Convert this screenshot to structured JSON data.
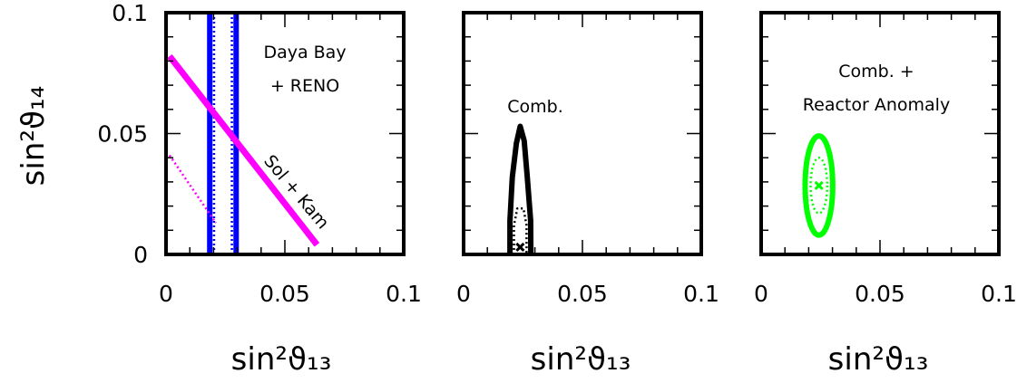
{
  "chart_data": [
    {
      "type": "scatter",
      "xlabel": "sin²ϑ₁₃",
      "ylabel": "sin²ϑ₁₄",
      "xlim": [
        0,
        0.1
      ],
      "ylim": [
        0,
        0.1
      ],
      "xticks": [
        "0",
        "0.05",
        "0.1"
      ],
      "yticks": [
        "0",
        "0.05",
        "0.1"
      ],
      "annotations": [
        {
          "text": "Daya Bay",
          "color": "#000000"
        },
        {
          "text": "+ RENO",
          "color": "#000000"
        },
        {
          "text": "Sol + Kam",
          "color": "#000000"
        }
      ],
      "series": [
        {
          "kind": "band",
          "line": "solid",
          "color": "#0000ff",
          "x_range": [
            0.0184,
            0.0295
          ],
          "y_range": [
            0,
            0.1
          ]
        },
        {
          "kind": "band",
          "line": "dotted",
          "color": "#0000ff",
          "x_range": [
            0.0202,
            0.0277
          ],
          "y_range": [
            0,
            0.1
          ]
        },
        {
          "kind": "line",
          "line": "solid",
          "color": "#ff00ff",
          "points": [
            [
              0.0015,
              0.082
            ],
            [
              0.0635,
              0.004
            ]
          ]
        },
        {
          "kind": "line",
          "line": "dotted",
          "color": "#ff00ff",
          "points": [
            [
              0.0015,
              0.041
            ],
            [
              0.021,
              0.013
            ]
          ]
        }
      ]
    },
    {
      "type": "scatter",
      "xlabel": "sin²ϑ₁₃",
      "ylabel": "",
      "xlim": [
        0,
        0.1
      ],
      "ylim": [
        0,
        0.1
      ],
      "xticks": [
        "0",
        "0.05",
        "0.1"
      ],
      "yticks": [],
      "annotations": [
        {
          "text": "Comb.",
          "color": "#000000"
        }
      ],
      "series": [
        {
          "kind": "contour",
          "line": "solid",
          "color": "#000000",
          "points": [
            [
              0.0195,
              0.0
            ],
            [
              0.0195,
              0.014
            ],
            [
              0.0205,
              0.032
            ],
            [
              0.0222,
              0.046
            ],
            [
              0.0238,
              0.053
            ],
            [
              0.0255,
              0.047
            ],
            [
              0.0268,
              0.032
            ],
            [
              0.0282,
              0.014
            ],
            [
              0.0283,
              0.0
            ]
          ]
        },
        {
          "kind": "contour",
          "line": "dotted",
          "color": "#000000",
          "points": [
            [
              0.0212,
              0.0
            ],
            [
              0.0212,
              0.012
            ],
            [
              0.0226,
              0.019
            ],
            [
              0.0252,
              0.019
            ],
            [
              0.0265,
              0.012
            ],
            [
              0.0265,
              0.0
            ]
          ]
        },
        {
          "kind": "best_fit",
          "color": "#000000",
          "points": [
            [
              0.0238,
              0.003
            ]
          ]
        }
      ]
    },
    {
      "type": "scatter",
      "xlabel": "sin²ϑ₁₃",
      "ylabel": "",
      "xlim": [
        0,
        0.1
      ],
      "ylim": [
        0,
        0.1
      ],
      "xticks": [
        "0",
        "0.05",
        "0.1"
      ],
      "yticks": [],
      "annotations": [
        {
          "text": "Comb. +",
          "color": "#000000"
        },
        {
          "text": "Reactor  Anomaly",
          "color": "#000000"
        }
      ],
      "series": [
        {
          "kind": "ellipse",
          "line": "solid",
          "color": "#00ff00",
          "center": [
            0.0243,
            0.0285
          ],
          "radius": [
            0.0058,
            0.0205
          ]
        },
        {
          "kind": "ellipse",
          "line": "dotted",
          "color": "#00ff00",
          "center": [
            0.0243,
            0.0285
          ],
          "radius": [
            0.0035,
            0.0115
          ]
        },
        {
          "kind": "best_fit",
          "color": "#00ff00",
          "points": [
            [
              0.0243,
              0.0285
            ]
          ]
        }
      ]
    }
  ]
}
